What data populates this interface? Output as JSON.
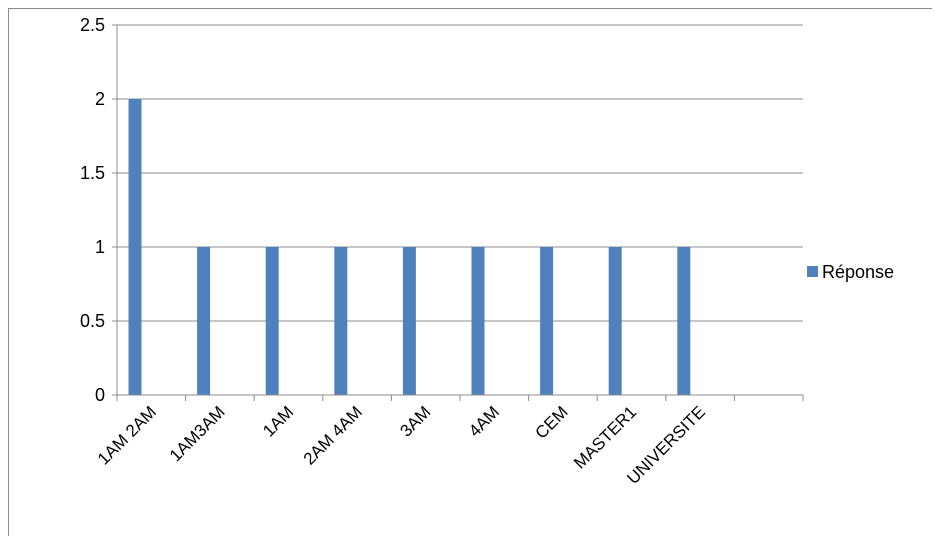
{
  "chart_data": {
    "type": "bar",
    "categories": [
      "1AM 2AM",
      "1AM3AM",
      "1AM",
      "2AM 4AM",
      "3AM",
      "4AM",
      "CEM",
      "MASTER1",
      "UNIVERSITE",
      ""
    ],
    "series": [
      {
        "name": "Réponse",
        "values": [
          2,
          1,
          1,
          1,
          1,
          1,
          1,
          1,
          1,
          null
        ],
        "color": "#4f81bd"
      }
    ],
    "ylim": [
      0,
      2.5
    ],
    "yticks": [
      "0",
      "0.5",
      "1",
      "1.5",
      "2",
      "2.5"
    ],
    "grid": true,
    "legend_position": "right"
  }
}
